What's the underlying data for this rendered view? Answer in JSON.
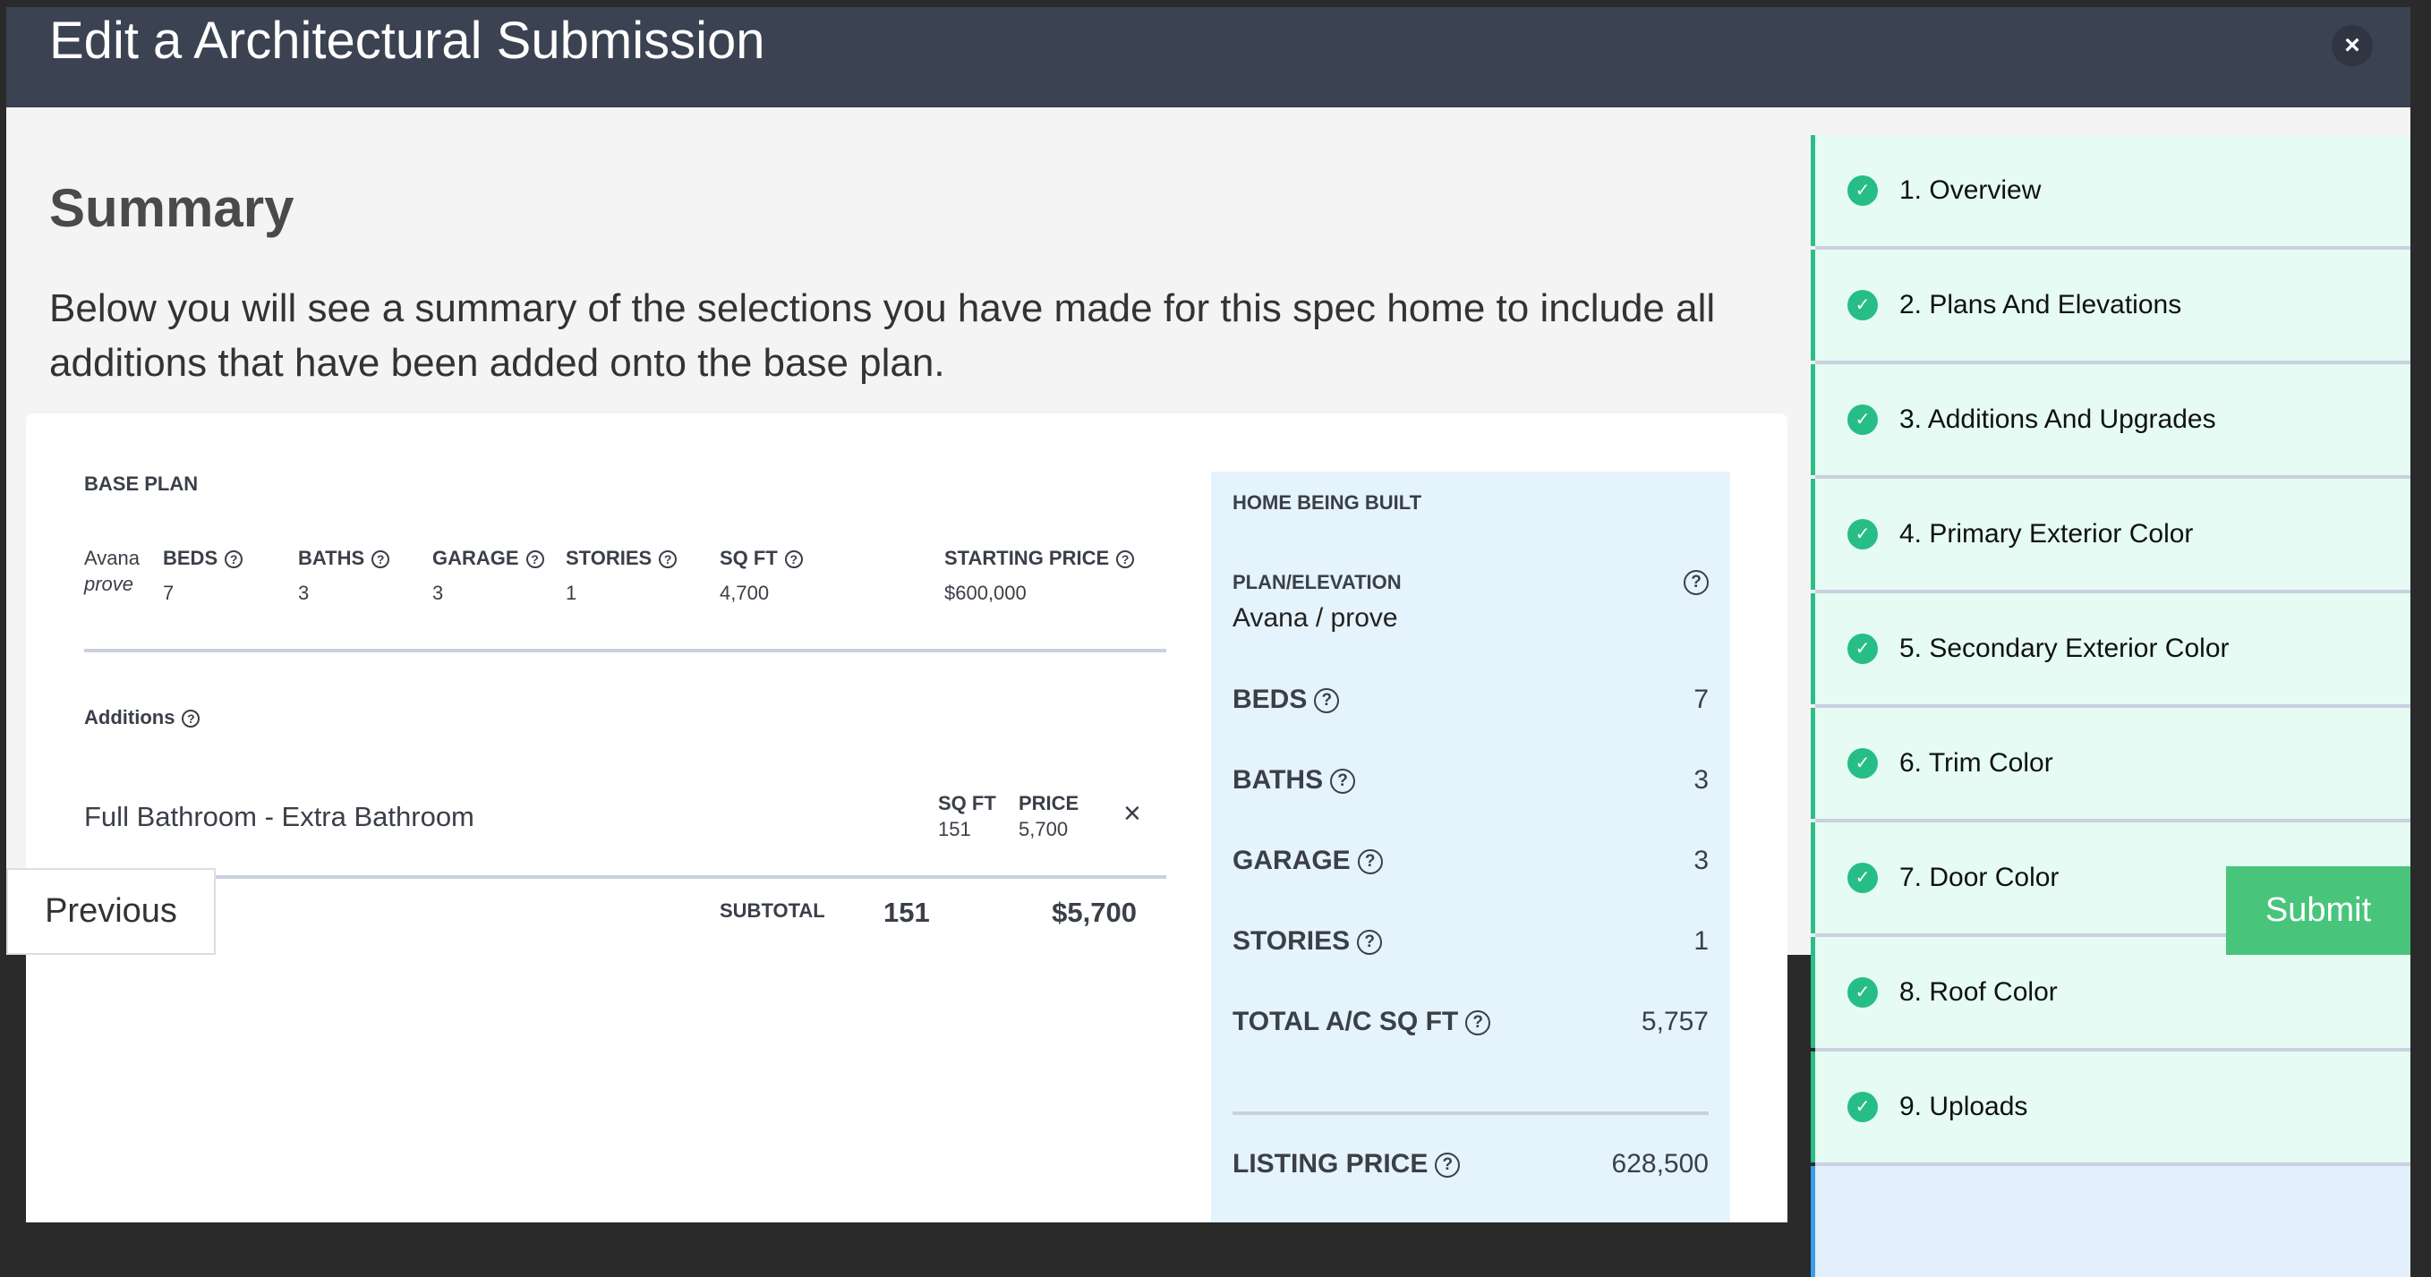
{
  "modal": {
    "title": "Edit a Architectural Submission",
    "close_icon": "close-icon"
  },
  "main": {
    "heading": "Summary",
    "intro": "Below you will see a summary of the selections you have made for this spec home to include all additions that have been added onto the base plan."
  },
  "base_plan": {
    "label": "BASE PLAN",
    "plan_name": "Avana",
    "elevation": "prove",
    "columns": [
      {
        "label": "BEDS",
        "value": "7"
      },
      {
        "label": "BATHS",
        "value": "3"
      },
      {
        "label": "GARAGE",
        "value": "3"
      },
      {
        "label": "STORIES",
        "value": "1"
      },
      {
        "label": "SQ FT",
        "value": "4,700"
      },
      {
        "label": "STARTING PRICE",
        "value": "$600,000"
      }
    ]
  },
  "additions": {
    "label": "Additions",
    "items": [
      {
        "name": "Full Bathroom - Extra Bathroom",
        "sqft_label": "SQ FT",
        "sqft": "151",
        "price_label": "PRICE",
        "price": "5,700",
        "remove": "×"
      }
    ],
    "subtotal_label": "SUBTOTAL",
    "subtotal_sqft": "151",
    "subtotal_price": "$5,700"
  },
  "home": {
    "label": "HOME BEING BUILT",
    "plan_label": "PLAN/ELEVATION",
    "plan_value": "Avana / prove",
    "rows": [
      {
        "label": "BEDS",
        "value": "7"
      },
      {
        "label": "BATHS",
        "value": "3"
      },
      {
        "label": "GARAGE",
        "value": "3"
      },
      {
        "label": "STORIES",
        "value": "1"
      },
      {
        "label": "TOTAL A/C SQ FT",
        "value": "5,757"
      }
    ],
    "listing_label": "LISTING PRICE",
    "listing_value": "628,500"
  },
  "steps": [
    {
      "label": "1. Overview",
      "done": true
    },
    {
      "label": "2. Plans And Elevations",
      "done": true
    },
    {
      "label": "3. Additions And Upgrades",
      "done": true
    },
    {
      "label": "4. Primary Exterior Color",
      "done": true
    },
    {
      "label": "5. Secondary Exterior Color",
      "done": true
    },
    {
      "label": "6. Trim Color",
      "done": true
    },
    {
      "label": "7. Door Color",
      "done": true
    },
    {
      "label": "8. Roof Color",
      "done": true
    },
    {
      "label": "9. Uploads",
      "done": true
    }
  ],
  "buttons": {
    "previous": "Previous",
    "submit": "Submit"
  },
  "colors": {
    "header": "#3b4252",
    "success": "#27bd87",
    "submit": "#48c57b",
    "info_panel": "#e5f3fc"
  }
}
